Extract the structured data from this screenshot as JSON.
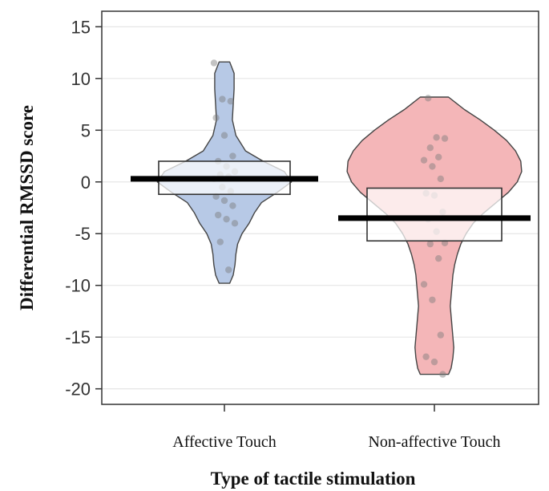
{
  "chart_data": {
    "type": "pirate",
    "title": "",
    "xlabel": "Type of tactile stimulation",
    "ylabel": "Differential RMSSD score",
    "ylim": [
      -21.5,
      16.5
    ],
    "yticks": [
      15,
      10,
      5,
      0,
      -5,
      -10,
      -15,
      -20
    ],
    "grid": true,
    "categories": [
      "Affective Touch",
      "Non-affective Touch"
    ],
    "groups": [
      {
        "name": "Affective Touch",
        "color": "#b7c9e6",
        "mean": 0.3,
        "box_low": -1.2,
        "box_high": 2.0,
        "density": [
          [
            11.6,
            0.3
          ],
          [
            10.5,
            0.55
          ],
          [
            9.0,
            0.55
          ],
          [
            7.5,
            0.5
          ],
          [
            6.0,
            0.45
          ],
          [
            4.5,
            0.65
          ],
          [
            3.0,
            1.2
          ],
          [
            2.0,
            2.2
          ],
          [
            1.0,
            3.4
          ],
          [
            0.0,
            3.8
          ],
          [
            -1.0,
            3.0
          ],
          [
            -2.0,
            2.1
          ],
          [
            -3.0,
            1.7
          ],
          [
            -4.0,
            1.4
          ],
          [
            -5.0,
            1.0
          ],
          [
            -6.0,
            0.75
          ],
          [
            -7.0,
            0.65
          ],
          [
            -8.0,
            0.6
          ],
          [
            -9.0,
            0.5
          ],
          [
            -9.8,
            0.3
          ]
        ],
        "points": [
          11.5,
          8.0,
          7.8,
          6.2,
          4.5,
          2.5,
          2.0,
          1.5,
          1.0,
          0.7,
          0.5,
          0.3,
          -0.5,
          -0.9,
          -1.4,
          -1.8,
          -2.3,
          -3.2,
          -3.6,
          -4.0,
          -5.8,
          -8.5
        ]
      },
      {
        "name": "Non-affective Touch",
        "color": "#f4b6b8",
        "mean": -3.5,
        "box_low": -5.7,
        "box_high": -0.6,
        "density": [
          [
            8.2,
            0.8
          ],
          [
            7.0,
            1.7
          ],
          [
            6.0,
            2.6
          ],
          [
            5.0,
            3.4
          ],
          [
            4.0,
            4.1
          ],
          [
            3.0,
            4.6
          ],
          [
            2.0,
            4.9
          ],
          [
            1.0,
            4.95
          ],
          [
            0.0,
            4.7
          ],
          [
            -1.0,
            4.2
          ],
          [
            -2.0,
            3.5
          ],
          [
            -3.0,
            2.8
          ],
          [
            -4.0,
            2.2
          ],
          [
            -5.0,
            1.8
          ],
          [
            -6.0,
            1.5
          ],
          [
            -7.0,
            1.3
          ],
          [
            -8.0,
            1.15
          ],
          [
            -9.0,
            1.05
          ],
          [
            -10.0,
            1.0
          ],
          [
            -11.0,
            0.95
          ],
          [
            -12.0,
            0.9
          ],
          [
            -13.0,
            0.95
          ],
          [
            -14.0,
            1.0
          ],
          [
            -15.0,
            1.05
          ],
          [
            -16.0,
            1.1
          ],
          [
            -17.0,
            1.05
          ],
          [
            -18.0,
            0.95
          ],
          [
            -18.6,
            0.8
          ]
        ],
        "points": [
          8.1,
          4.3,
          4.2,
          3.3,
          2.4,
          2.1,
          1.5,
          0.3,
          -1.1,
          -1.3,
          -2.9,
          -3.6,
          -4.8,
          -5.9,
          -6.0,
          -7.4,
          -9.9,
          -11.4,
          -14.8,
          -16.9,
          -17.4,
          -18.6
        ]
      }
    ]
  }
}
